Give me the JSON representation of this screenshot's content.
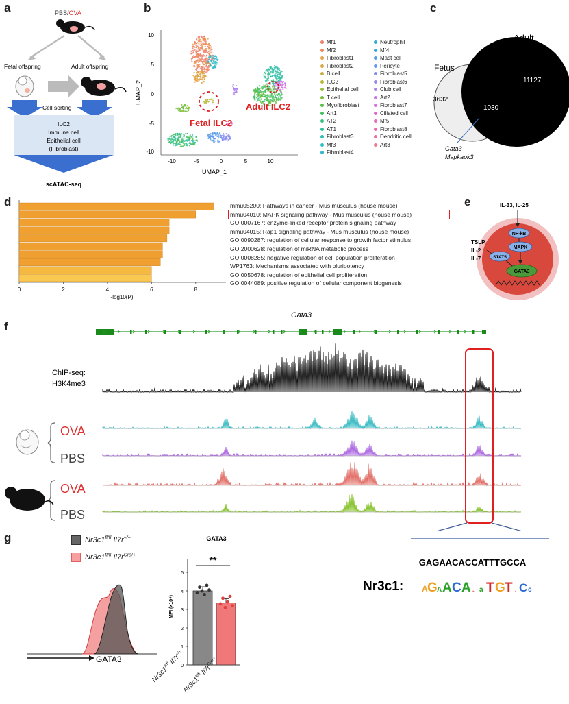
{
  "panel_labels": [
    "a",
    "b",
    "c",
    "d",
    "e",
    "f",
    "g"
  ],
  "panel_a": {
    "treatment_left": "PBS/",
    "treatment_right": "OVA",
    "fetal": "Fetal offspring",
    "adult": "Adult offspring",
    "sorting": "Cell sorting",
    "box_lines": [
      "ILC2",
      "Immune cell",
      "Epithelial cell",
      "(Fibroblast)"
    ],
    "method": "scATAC-seq"
  },
  "panel_b": {
    "xlabel": "UMAP_1",
    "ylabel": "UMAP_2",
    "xticks": [
      "-10",
      "-5",
      "0",
      "5",
      "10"
    ],
    "yticks": [
      "10",
      "5",
      "0",
      "-5",
      "-10"
    ],
    "fetal_label": "Fetal ILC2",
    "adult_label": "Adult ILC2",
    "legend_col1": [
      {
        "name": "Mf1",
        "color": "#f08070"
      },
      {
        "name": "Mf2",
        "color": "#ee8a5a"
      },
      {
        "name": "Fibroblast1",
        "color": "#e8a040"
      },
      {
        "name": "Fibroblast2",
        "color": "#d8a848"
      },
      {
        "name": "B cell",
        "color": "#c8b048"
      },
      {
        "name": "ILC2",
        "color": "#b8b838"
      },
      {
        "name": "Epithelial cell",
        "color": "#98c038"
      },
      {
        "name": "T cell",
        "color": "#78c040"
      },
      {
        "name": "Myofibroblast",
        "color": "#58c048"
      },
      {
        "name": "Art1",
        "color": "#40c060"
      },
      {
        "name": "AT2",
        "color": "#38c080"
      },
      {
        "name": "AT1",
        "color": "#30c098"
      },
      {
        "name": "Fibroblast3",
        "color": "#30c0b0"
      },
      {
        "name": "Mf3",
        "color": "#30c0c0"
      },
      {
        "name": "Fibroblast4",
        "color": "#30b8d0"
      }
    ],
    "legend_col2": [
      {
        "name": "Neutrophil",
        "color": "#30b0d8"
      },
      {
        "name": "Mf4",
        "color": "#38a8e0"
      },
      {
        "name": "Mast cell",
        "color": "#50a0e8"
      },
      {
        "name": "Pericyte",
        "color": "#6898f0"
      },
      {
        "name": "Fibroblast5",
        "color": "#8090f0"
      },
      {
        "name": "Fibroblast6",
        "color": "#9888f0"
      },
      {
        "name": "Club cell",
        "color": "#b080f0"
      },
      {
        "name": "Art2",
        "color": "#c878e8"
      },
      {
        "name": "Fibroblast7",
        "color": "#d870e0"
      },
      {
        "name": "Ciliated cell",
        "color": "#e068d0"
      },
      {
        "name": "Mf5",
        "color": "#e868c0"
      },
      {
        "name": "Fibroblast8",
        "color": "#f068b0"
      },
      {
        "name": "Dendritic cell",
        "color": "#f0709c"
      },
      {
        "name": "Art3",
        "color": "#f07888"
      }
    ]
  },
  "panel_c": {
    "adult_label": "Adult",
    "fetus_label": "Fetus",
    "fetus_only": "3632",
    "overlap": "1030",
    "adult_only": "11127",
    "genes": [
      "Gata3",
      "Mapkapk3"
    ]
  },
  "panel_d": {
    "chart_data": {
      "type": "bar",
      "orientation": "horizontal",
      "xlabel": "-log10(P)",
      "xticks": [
        "0",
        "2",
        "4",
        "6",
        "8"
      ],
      "xlim": [
        0,
        9
      ],
      "categories": [
        "mmu05200: Pathways in cancer - Mus musculus (house mouse)",
        "mmu04010: MAPK signaling pathway - Mus musculus (house mouse)",
        "GO:0007167: enzyme-linked receptor protein signaling pathway",
        "mmu04015: Rap1 signaling pathway - Mus musculus (house mouse)",
        "GO:0090287: regulation of cellular response to growth factor stimulus",
        "GO:2000628: regulation of miRNA metabolic process",
        "GO:0008285: negative regulation of cell population proliferation",
        "WP1763: Mechanisms associated with pluripotency",
        "GO:0050678: regulation of epithelial cell proliferation",
        "GO:0044089: positive regulation of cellular component biogenesis"
      ],
      "values": [
        8.8,
        8.0,
        6.8,
        6.8,
        6.7,
        6.5,
        6.5,
        6.4,
        6.0,
        6.0
      ],
      "colors": [
        "#f0a030",
        "#f0a030",
        "#f0a030",
        "#f0a030",
        "#f0a030",
        "#f0a030",
        "#f0a030",
        "#f0a030",
        "#f5b840",
        "#f8c850"
      ]
    }
  },
  "panel_e": {
    "top_cytokines": "IL-33, IL-25",
    "left_cytokines": [
      "TSLP",
      "IL-2",
      "IL-7"
    ],
    "nodes": [
      "NF-kB",
      "MAPK",
      "STAT5",
      "GATA3"
    ]
  },
  "panel_f": {
    "gene": "Gata3",
    "chip_label": [
      "ChIP-seq:",
      "H3K4me3"
    ],
    "tracks": [
      {
        "label": "OVA",
        "color": "#30b8c0",
        "label_color": "#e03030"
      },
      {
        "label": "PBS",
        "color": "#a860e0",
        "label_color": "#444444"
      },
      {
        "label": "OVA",
        "color": "#e06860",
        "label_color": "#e03030"
      },
      {
        "label": "PBS",
        "color": "#80c020",
        "label_color": "#444444"
      }
    ],
    "sequence": "GAGAACACCATTTGCCA",
    "motif_name": "Nr3c1:"
  },
  "panel_g": {
    "legend": [
      {
        "prefix": "Nr3c1",
        "sup1": "fl/fl",
        "mid": " Il7r",
        "sup2": "+/+",
        "color": "#666666"
      },
      {
        "prefix": "Nr3c1",
        "sup1": "fl/fl",
        "mid": " Il7r",
        "sup2": "Cre/+",
        "color": "#f08080"
      }
    ],
    "hist_xlabel": "GATA3",
    "bar_title": "GATA3",
    "ylabel": "MFI (×10⁴)",
    "yticks": [
      "0",
      "1",
      "2",
      "3",
      "4",
      "5"
    ],
    "significance": "**",
    "chart_data": {
      "type": "bar",
      "categories": [
        "Nr3c1fl/fl Il7r+/+",
        "Nr3c1fl/fl Il7rCre/+"
      ],
      "values": [
        4.0,
        3.35
      ],
      "ylim": [
        0,
        5
      ],
      "colors": [
        "#888888",
        "#f07878"
      ],
      "points": [
        [
          3.9,
          4.2,
          4.0,
          3.8,
          4.3,
          4.05
        ],
        [
          3.3,
          3.6,
          3.1,
          3.4,
          3.7,
          3.2
        ]
      ]
    }
  }
}
